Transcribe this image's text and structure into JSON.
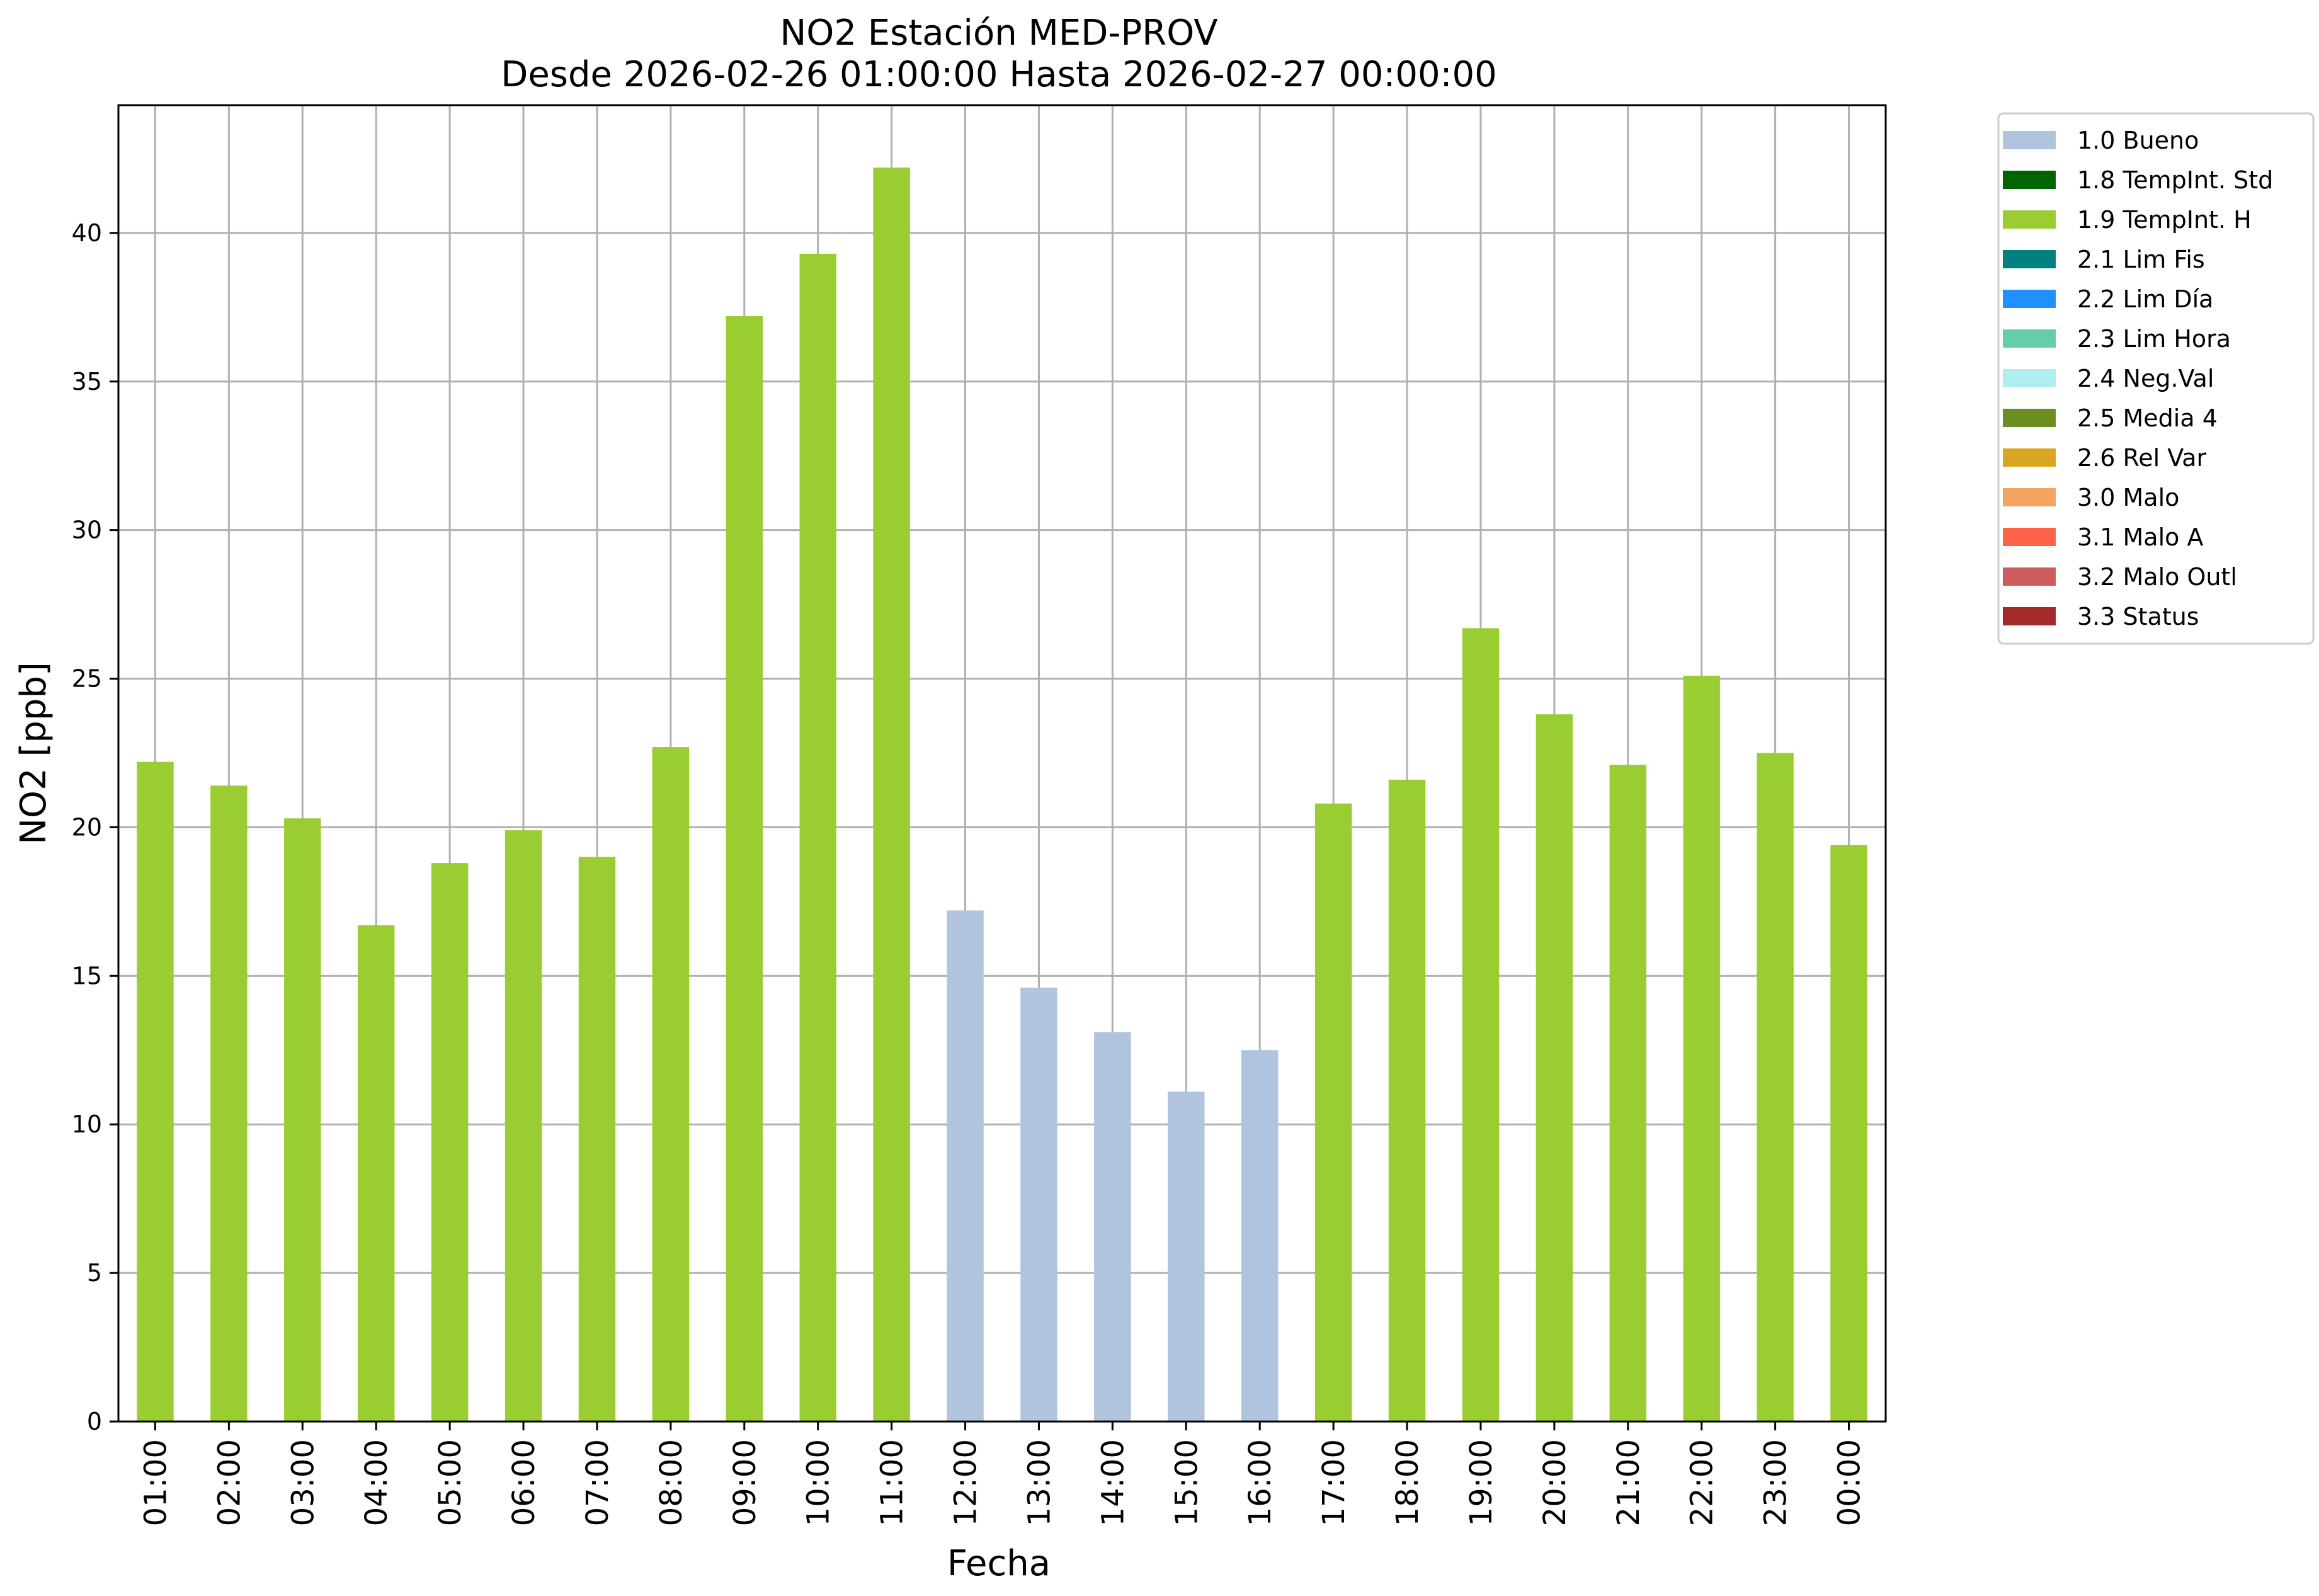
{
  "chart_data": {
    "type": "bar",
    "title": "NO2 Estación MED-PROV",
    "subtitle": "Desde 2026-02-26 01:00:00 Hasta 2026-02-27 00:00:00",
    "xlabel": "Fecha",
    "ylabel": "NO2 [ppb]",
    "ylim": [
      0,
      44.3
    ],
    "y_ticks": [
      0,
      5,
      10,
      15,
      20,
      25,
      30,
      35,
      40
    ],
    "grid": true,
    "legend_position": "outside-top-right",
    "categories": [
      "01:00",
      "02:00",
      "03:00",
      "04:00",
      "05:00",
      "06:00",
      "07:00",
      "08:00",
      "09:00",
      "10:00",
      "11:00",
      "12:00",
      "13:00",
      "14:00",
      "15:00",
      "16:00",
      "17:00",
      "18:00",
      "19:00",
      "20:00",
      "21:00",
      "22:00",
      "23:00",
      "00:00"
    ],
    "values": [
      22.2,
      21.4,
      20.3,
      16.7,
      18.8,
      19.9,
      19.0,
      22.7,
      37.2,
      39.3,
      42.2,
      17.2,
      14.6,
      13.1,
      11.1,
      12.5,
      20.8,
      21.6,
      26.7,
      23.8,
      22.1,
      25.1,
      22.5,
      19.4
    ],
    "value_flags": [
      "1.9 TempInt. H",
      "1.9 TempInt. H",
      "1.9 TempInt. H",
      "1.9 TempInt. H",
      "1.9 TempInt. H",
      "1.9 TempInt. H",
      "1.9 TempInt. H",
      "1.9 TempInt. H",
      "1.9 TempInt. H",
      "1.9 TempInt. H",
      "1.9 TempInt. H",
      "1.0 Bueno",
      "1.0 Bueno",
      "1.0 Bueno",
      "1.0 Bueno",
      "1.0 Bueno",
      "1.9 TempInt. H",
      "1.9 TempInt. H",
      "1.9 TempInt. H",
      "1.9 TempInt. H",
      "1.9 TempInt. H",
      "1.9 TempInt. H",
      "1.9 TempInt. H",
      "1.9 TempInt. H"
    ],
    "legend": [
      {
        "label": "1.0 Bueno",
        "color": "#b0c4de"
      },
      {
        "label": "1.8 TempInt. Std",
        "color": "#006400"
      },
      {
        "label": "1.9 TempInt. H",
        "color": "#9acd32"
      },
      {
        "label": "2.1 Lim Fis",
        "color": "#008080"
      },
      {
        "label": "2.2 Lim Día",
        "color": "#1e90ff"
      },
      {
        "label": "2.3 Lim Hora",
        "color": "#66cdaa"
      },
      {
        "label": "2.4 Neg.Val",
        "color": "#afeeee"
      },
      {
        "label": "2.5 Media 4",
        "color": "#6b8e23"
      },
      {
        "label": "2.6 Rel Var",
        "color": "#daa520"
      },
      {
        "label": "3.0 Malo",
        "color": "#f4a460"
      },
      {
        "label": "3.1 Malo A",
        "color": "#ff6347"
      },
      {
        "label": "3.2 Malo Outl",
        "color": "#cd5c5c"
      },
      {
        "label": "3.3 Status",
        "color": "#a52a2a"
      }
    ]
  }
}
